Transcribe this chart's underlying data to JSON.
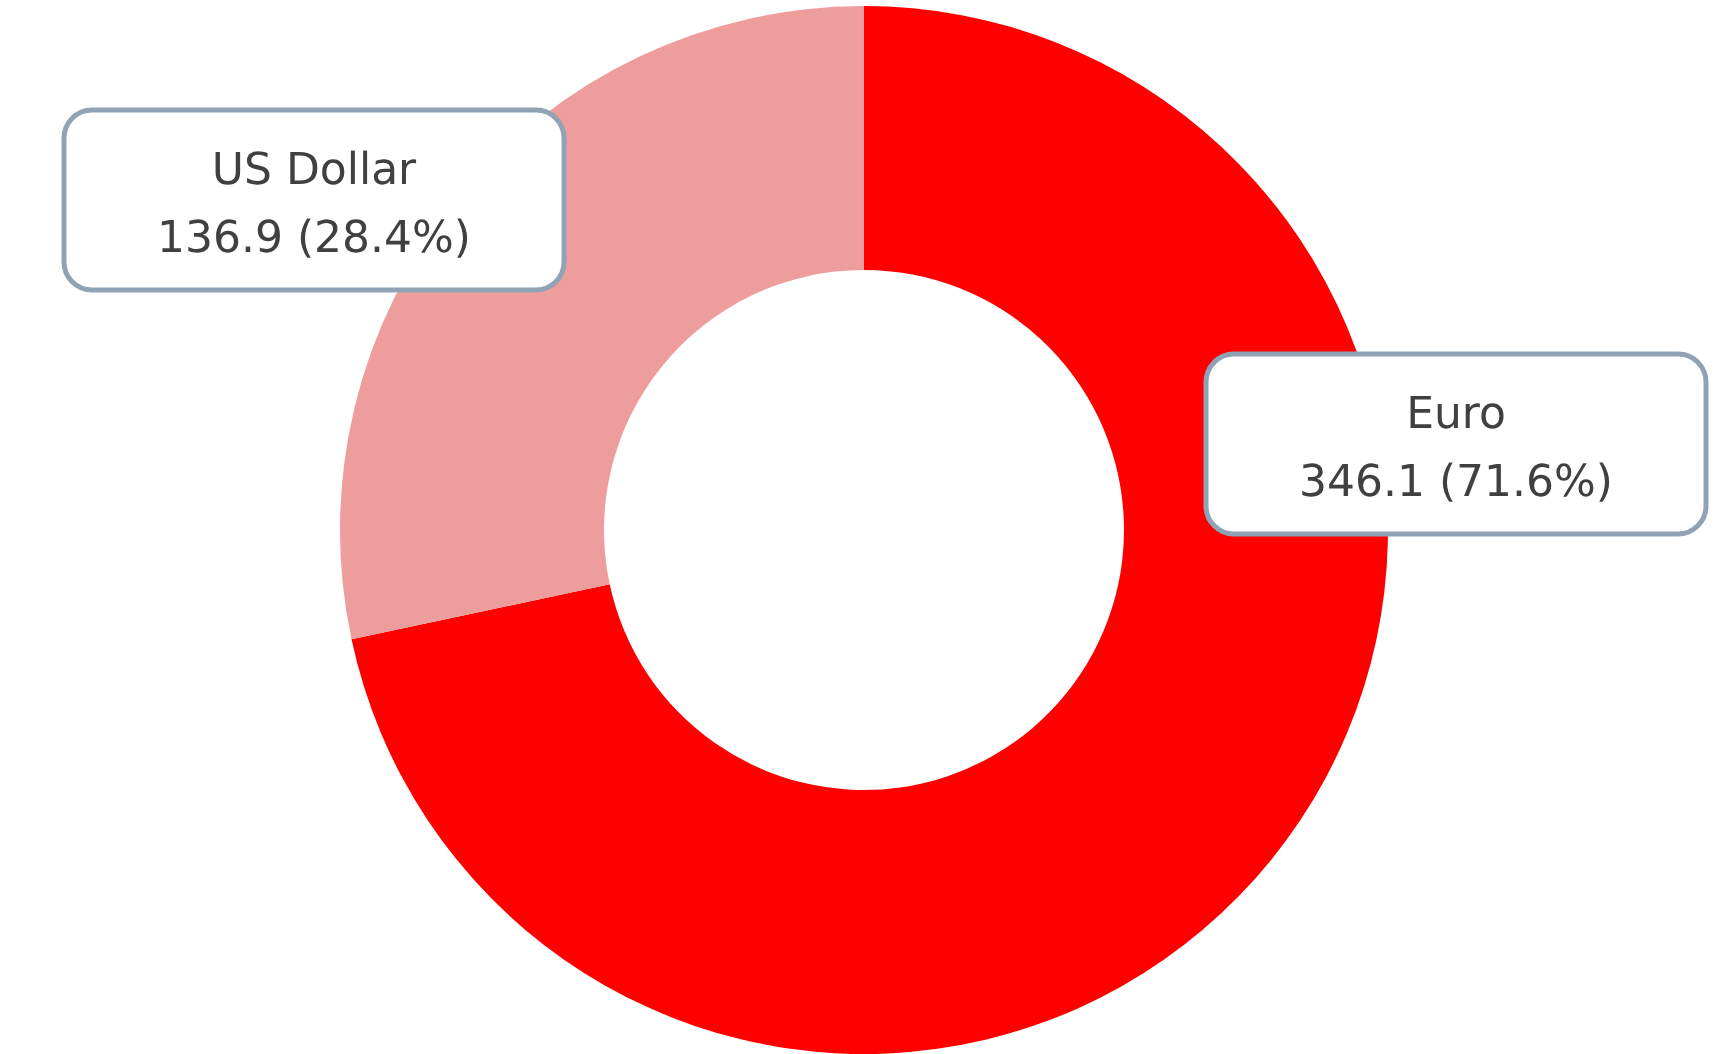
{
  "chart_data": {
    "type": "donut",
    "categories": [
      "Euro",
      "US Dollar"
    ],
    "values": [
      346.1,
      136.9
    ],
    "colors": [
      "#ff0000",
      "#ee9d9d"
    ],
    "value_labels": [
      "346.1 (71.6%)",
      "136.9 (28.4%)"
    ]
  }
}
